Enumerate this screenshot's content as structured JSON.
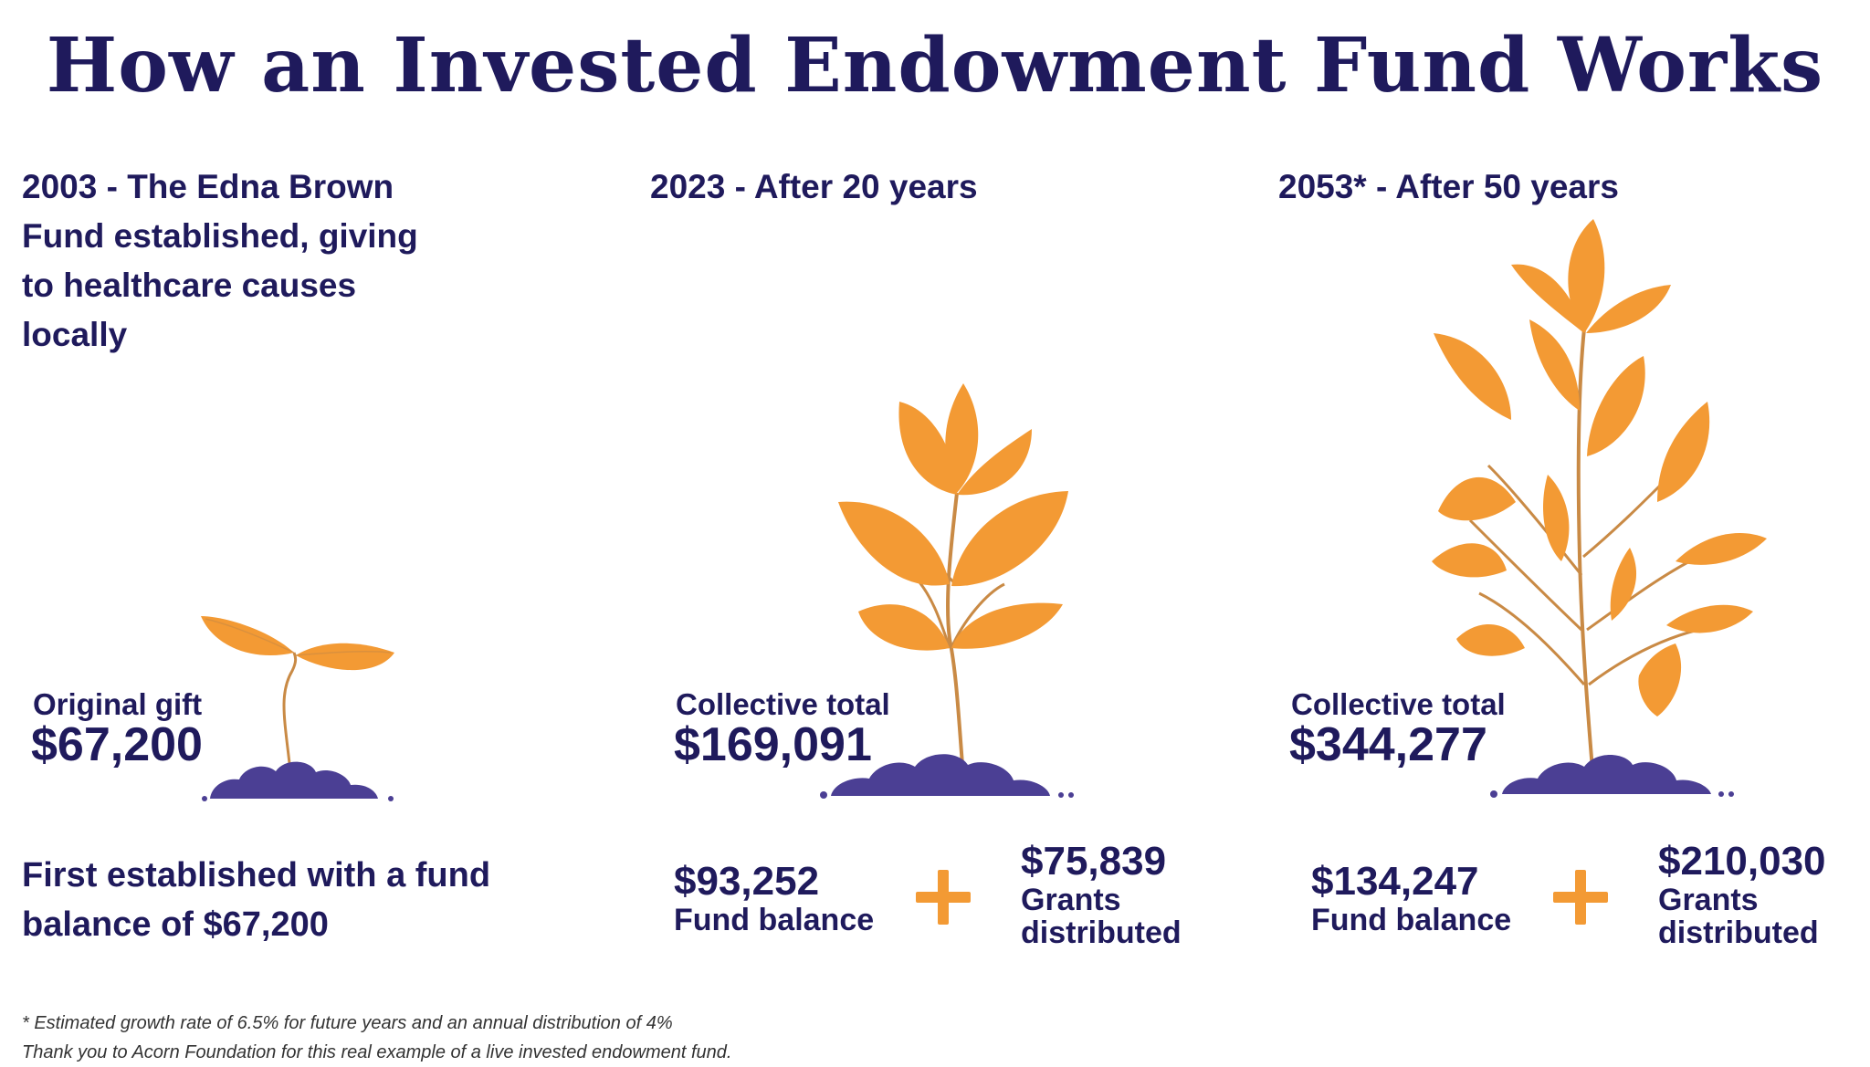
{
  "title": "How an Invested Endowment Fund Works",
  "columns": [
    {
      "heading": "2003 - The Edna Brown Fund established, giving to healthcare causes locally",
      "total_label": "Original gift",
      "total_value": "$67,200",
      "description": "First established with a fund balance of $67,200"
    },
    {
      "heading": "2023 - After 20 years",
      "total_label": "Collective total",
      "total_value": "$169,091",
      "fund_balance_value": "$93,252",
      "fund_balance_label": "Fund balance",
      "grants_value": "$75,839",
      "grants_label": "Grants distributed"
    },
    {
      "heading": "2053* - After 50 years",
      "total_label": "Collective total",
      "total_value": "$344,277",
      "fund_balance_value": "$134,247",
      "fund_balance_label": "Fund balance",
      "grants_value": "$210,030",
      "grants_label": "Grants distributed"
    }
  ],
  "footnotes": [
    "* Estimated growth rate of 6.5% for future years and an annual distribution of 4%",
    "Thank you to Acorn Foundation for this real example of a live invested endowment fund."
  ],
  "colors": {
    "navy": "#1f1a5c",
    "leaf_orange": "#f39a34",
    "soil_purple": "#4b3f94",
    "stem_tan": "#c98a45"
  },
  "icons": [
    "seedling-icon",
    "young-plant-icon",
    "mature-plant-icon",
    "plus-icon"
  ]
}
